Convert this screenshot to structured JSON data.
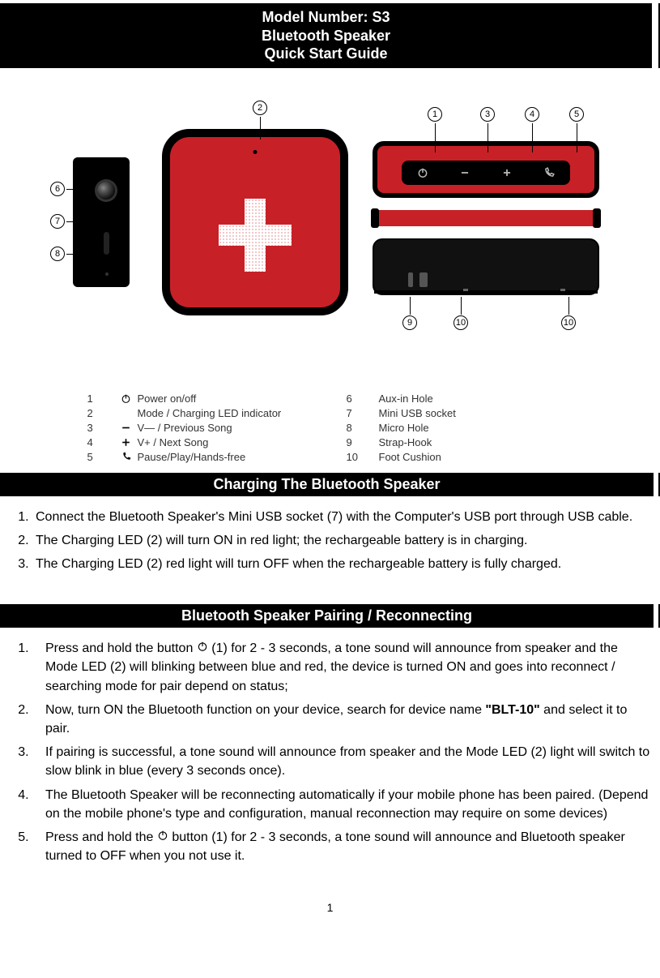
{
  "header": {
    "line1": "Model Number: S3",
    "line2": "Bluetooth Speaker",
    "line3": "Quick Start Guide"
  },
  "callouts": {
    "c1": "1",
    "c2": "2",
    "c3": "3",
    "c4": "4",
    "c5": "5",
    "c6": "6",
    "c7": "7",
    "c8": "8",
    "c9": "9",
    "c10": "10",
    "c10b": "10"
  },
  "legend": {
    "rows": [
      {
        "n": "1",
        "icon": "power",
        "text": "Power on/off",
        "n2": "6",
        "text2": "Aux-in Hole"
      },
      {
        "n": "2",
        "icon": "",
        "text": "Mode / Charging LED indicator",
        "n2": "7",
        "text2": "Mini USB socket"
      },
      {
        "n": "3",
        "icon": "minus",
        "text": "V— / Previous Song",
        "n2": "8",
        "text2": "Micro Hole"
      },
      {
        "n": "4",
        "icon": "plus",
        "text": "V+ /  Next Song",
        "n2": "9",
        "text2": "Strap-Hook"
      },
      {
        "n": "5",
        "icon": "phone",
        "text": "Pause/Play/Hands-free",
        "n2": "10",
        "text2": "Foot Cushion"
      }
    ]
  },
  "sections": {
    "charging_title": "Charging The Bluetooth Speaker",
    "charging_items": [
      "Connect the Bluetooth Speaker's Mini USB socket (7) with the Computer's USB port through USB cable.",
      "The Charging LED (2) will turn ON in red light; the rechargeable battery is in charging.",
      "The Charging LED (2) red light will turn OFF when the rechargeable battery is fully charged."
    ],
    "pairing_title": "Bluetooth Speaker Pairing / Reconnecting",
    "pairing_items": [
      {
        "pre": "Press and hold the button  ",
        "icon": "power",
        "post": " (1) for 2 - 3 seconds, a tone sound will announce from speaker and the Mode LED (2) will blinking between blue and red, the device is turned ON and goes into reconnect / searching mode for pair depend on status;"
      },
      {
        "pre": "Now, turn ON the Bluetooth function on your device, search for device name ",
        "bold": "\"BLT-10\"",
        "post": " and select it to pair."
      },
      {
        "pre": "If pairing is successful, a tone sound will announce from speaker and the Mode LED (2) light will switch to slow blink in blue (every 3 seconds once).",
        "post": ""
      },
      {
        "pre": "The Bluetooth Speaker will be reconnecting automatically if your mobile phone has been paired. (Depend on the mobile phone's type and configuration, manual reconnection may require on some devices)",
        "post": ""
      },
      {
        "pre": "Press and hold the  ",
        "icon": "power",
        "post": "  button (1) for 2 - 3 seconds, a tone sound will announce and Bluetooth speaker turned to OFF when you not use it."
      }
    ]
  },
  "page_number": "1",
  "colors": {
    "black": "#000000",
    "white": "#ffffff",
    "red": "#c82027",
    "text": "#222222"
  }
}
